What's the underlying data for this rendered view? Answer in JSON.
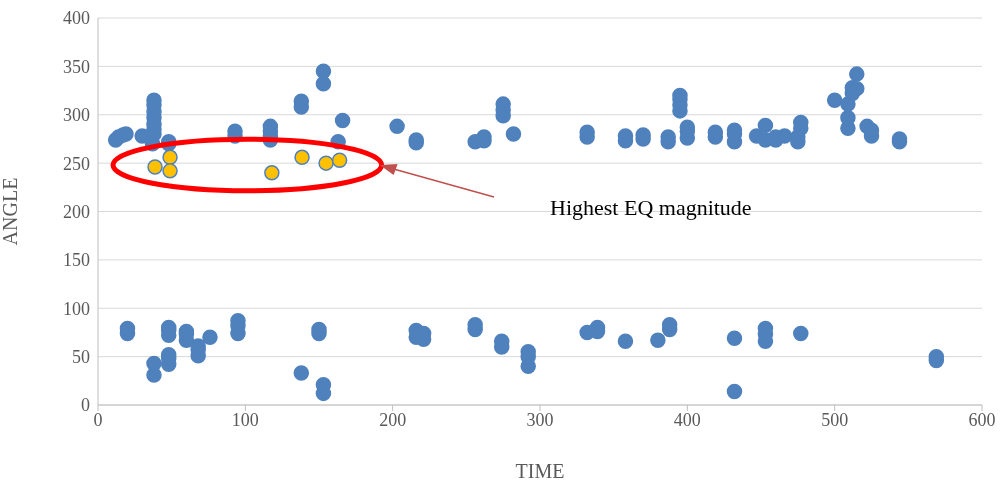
{
  "chart_data": {
    "type": "scatter",
    "xlabel": "TIME",
    "ylabel": "ANGLE",
    "xlim": [
      0,
      600
    ],
    "xticks": [
      0,
      100,
      200,
      300,
      400,
      500,
      600
    ],
    "ylim": [
      0,
      400
    ],
    "yticks": [
      0,
      50,
      100,
      150,
      200,
      250,
      300,
      350,
      400
    ],
    "grid": "y",
    "legend": false,
    "marker": "circle",
    "annotations": [
      "Highest EQ magnitude"
    ],
    "series": [
      {
        "color": "#4f81bd",
        "x": [
          12,
          14,
          17,
          19,
          30,
          37,
          38,
          38,
          38,
          38,
          38,
          38,
          38,
          48,
          48,
          93,
          93,
          117,
          117,
          117,
          117,
          138,
          138,
          153,
          153,
          163,
          166,
          203,
          216,
          216,
          256,
          262,
          262,
          275,
          275,
          275,
          282,
          332,
          332,
          358,
          358,
          370,
          370,
          387,
          387,
          395,
          395,
          395,
          395,
          400,
          400,
          400,
          419,
          419,
          432,
          432,
          432,
          447,
          453,
          453,
          460,
          460,
          466,
          475,
          475,
          477,
          477,
          500,
          509,
          509,
          509,
          512,
          512,
          515,
          515,
          522,
          525,
          525,
          544,
          544,
          20,
          20,
          38,
          38,
          48,
          48,
          48,
          48,
          48,
          48,
          60,
          60,
          60,
          68,
          68,
          68,
          76,
          95,
          95,
          95,
          138,
          150,
          150,
          153,
          153,
          216,
          216,
          221,
          221,
          256,
          256,
          274,
          274,
          292,
          292,
          292,
          332,
          339,
          339,
          358,
          380,
          388,
          388,
          432,
          432,
          453,
          453,
          453,
          477,
          569,
          569
        ],
        "values": [
          274,
          277,
          279,
          280,
          278,
          270,
          280,
          285,
          290,
          297,
          303,
          310,
          315,
          270,
          272,
          278,
          283,
          274,
          278,
          283,
          288,
          308,
          314,
          332,
          345,
          272,
          294,
          288,
          271,
          274,
          272,
          273,
          277,
          299,
          305,
          311,
          280,
          277,
          282,
          273,
          278,
          275,
          279,
          272,
          277,
          304,
          310,
          316,
          320,
          276,
          283,
          287,
          277,
          282,
          272,
          280,
          284,
          278,
          274,
          289,
          274,
          277,
          278,
          272,
          277,
          286,
          292,
          315,
          286,
          297,
          311,
          322,
          328,
          342,
          327,
          288,
          278,
          284,
          272,
          275,
          74,
          79,
          31,
          43,
          42,
          48,
          52,
          72,
          77,
          80,
          67,
          73,
          76,
          51,
          57,
          61,
          70,
          74,
          82,
          87,
          33,
          74,
          78,
          12,
          21,
          70,
          77,
          68,
          74,
          78,
          83,
          60,
          66,
          40,
          50,
          55,
          75,
          76,
          80,
          66,
          67,
          78,
          83,
          14,
          69,
          66,
          73,
          79,
          74,
          46,
          50
        ]
      },
      {
        "color": "#ffc000",
        "x": [
          38.7,
          48.9,
          48.9,
          118,
          138.5,
          154.8,
          164
        ],
        "values": [
          246,
          256,
          242,
          240,
          256,
          250,
          253
        ]
      }
    ]
  }
}
